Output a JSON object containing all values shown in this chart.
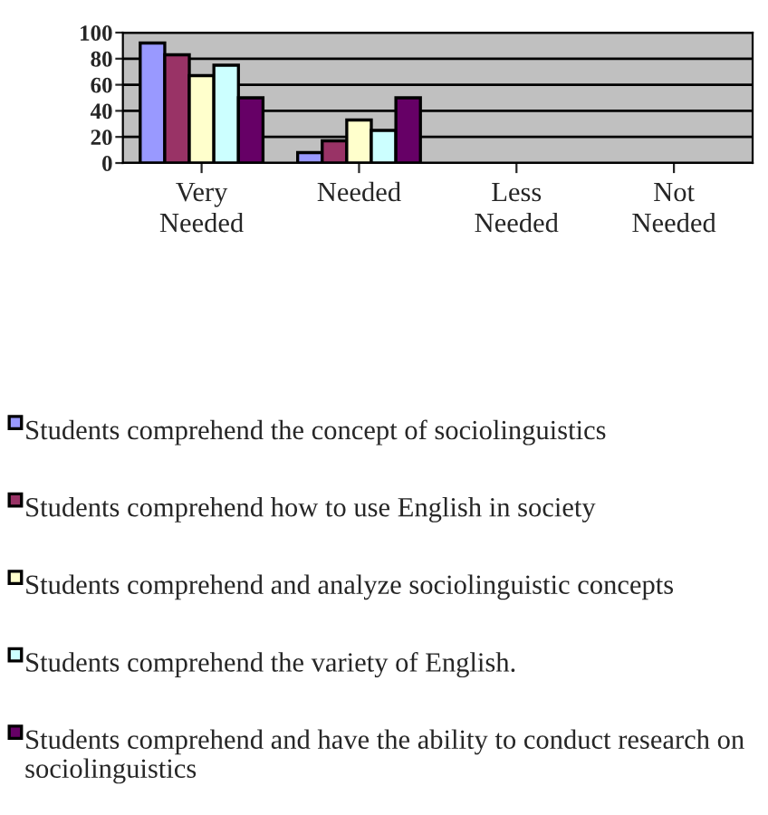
{
  "chart_data": {
    "type": "bar",
    "categories": [
      "Very\nNeeded",
      "Needed",
      "Less\nNeeded",
      "Not\nNeeded"
    ],
    "series": [
      {
        "name": "Students comprehend the concept of sociolinguistics",
        "color": "#9999ff",
        "values": [
          92,
          8,
          null,
          null
        ]
      },
      {
        "name": "Students comprehend how to use English in society",
        "color": "#993366",
        "values": [
          83,
          17,
          null,
          null
        ]
      },
      {
        "name": "Students comprehend and analyze sociolinguistic concepts",
        "color": "#ffffcc",
        "values": [
          67,
          33,
          null,
          null
        ]
      },
      {
        "name": "Students comprehend the variety of English.",
        "color": "#ccffff",
        "values": [
          75,
          25,
          null,
          null
        ]
      },
      {
        "name": "Students comprehend and have the ability to conduct research on sociolinguistics",
        "color": "#660066",
        "values": [
          50,
          50,
          null,
          null
        ]
      }
    ],
    "ylim": [
      0,
      100
    ],
    "yticks": [
      0,
      20,
      40,
      60,
      80,
      100
    ],
    "grid": "y",
    "legend": "bottom"
  }
}
